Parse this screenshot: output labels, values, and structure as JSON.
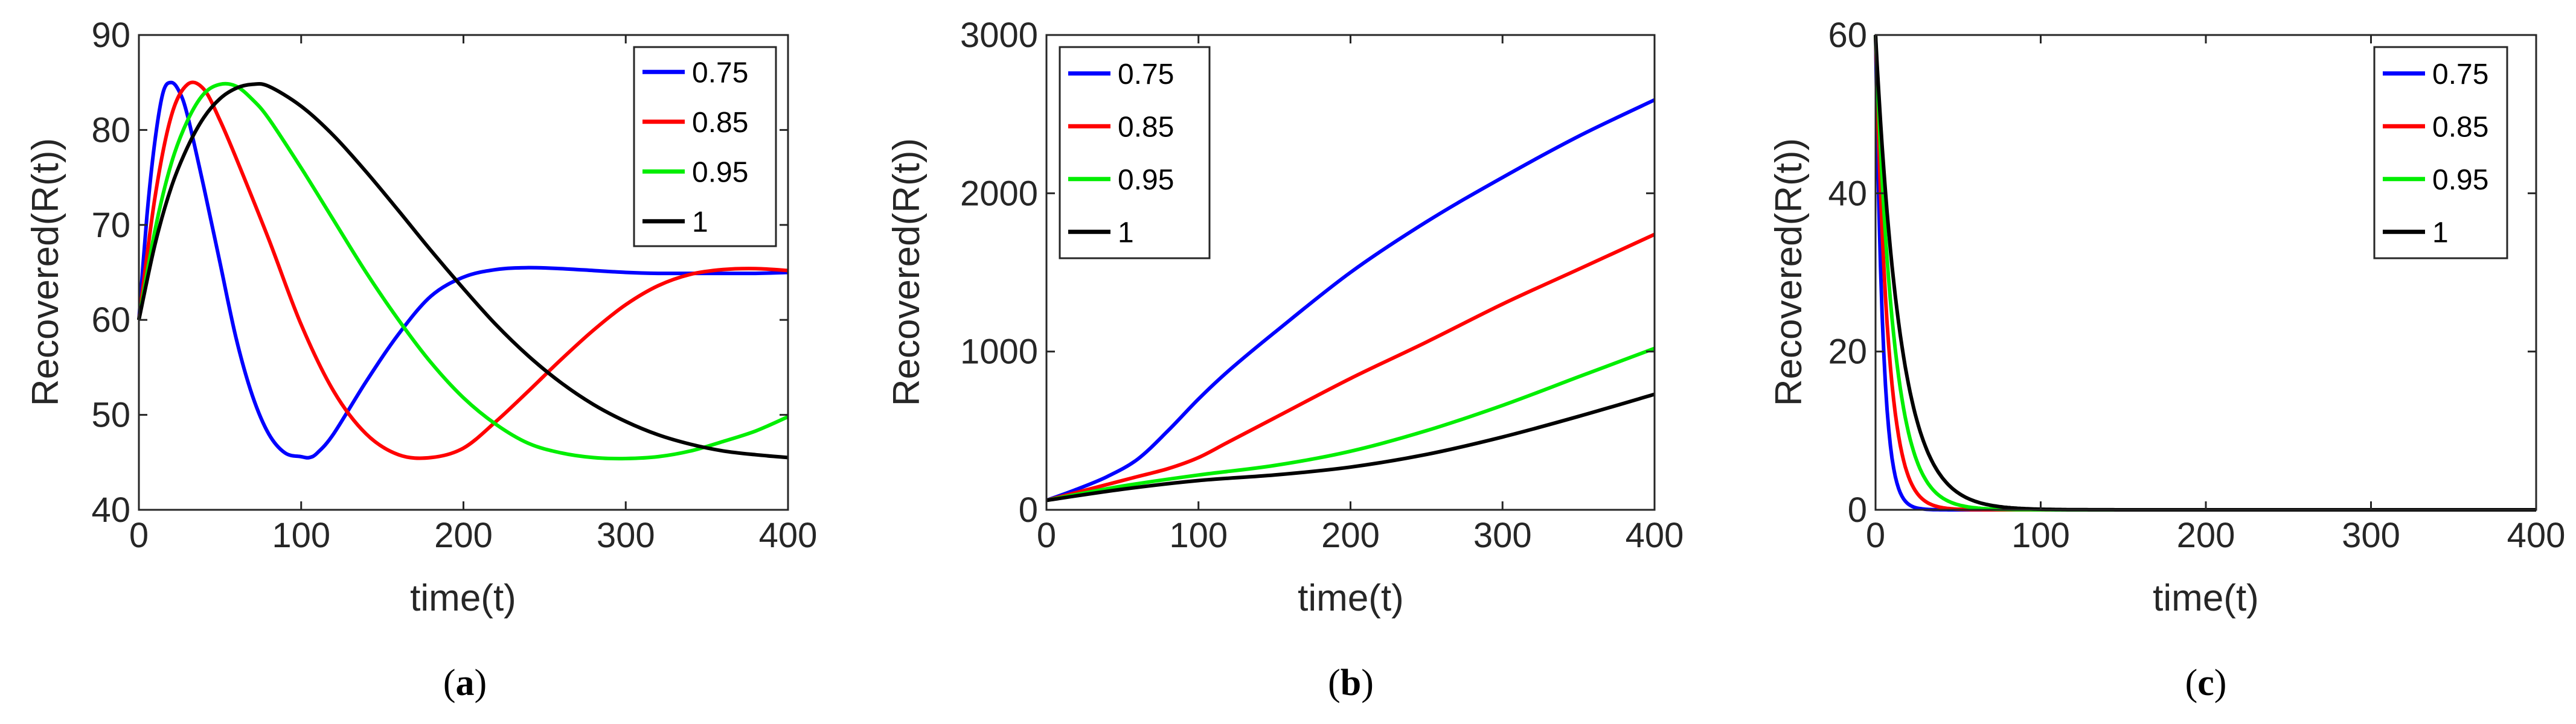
{
  "colors": {
    "s0": "#0000ff",
    "s1": "#ff0000",
    "s2": "#00ee00",
    "s3": "#000000",
    "axis": "#262626"
  },
  "chart_data": [
    {
      "type": "line",
      "caption_open": "(",
      "caption_letter": "a",
      "caption_close": ")",
      "xlabel": "time(t)",
      "ylabel": "Recovered(R(t))",
      "xlim": [
        0,
        400
      ],
      "ylim": [
        40,
        90
      ],
      "xticks": [
        0,
        100,
        200,
        300,
        400
      ],
      "yticks": [
        40,
        50,
        60,
        70,
        80,
        90
      ],
      "legend_position": "top-right",
      "series": [
        {
          "name": "0.75",
          "x": [
            0,
            5,
            10,
            15,
            20,
            25,
            30,
            40,
            50,
            60,
            70,
            80,
            90,
            100,
            105,
            110,
            120,
            140,
            160,
            180,
            200,
            220,
            240,
            260,
            280,
            300,
            320,
            340,
            360,
            380,
            400
          ],
          "y": [
            60,
            71,
            79,
            84,
            85,
            84,
            81.5,
            74,
            66,
            58,
            52,
            48,
            46,
            45.6,
            45.5,
            46,
            48,
            53.5,
            58.5,
            62.5,
            64.5,
            65.3,
            65.5,
            65.4,
            65.2,
            65.0,
            64.9,
            64.9,
            64.9,
            64.9,
            65.0
          ]
        },
        {
          "name": "0.85",
          "x": [
            0,
            10,
            20,
            30,
            40,
            50,
            60,
            80,
            100,
            120,
            140,
            160,
            180,
            200,
            220,
            240,
            260,
            280,
            300,
            320,
            340,
            360,
            380,
            400
          ],
          "y": [
            60,
            73,
            81.5,
            84.8,
            84.3,
            81,
            77,
            68.5,
            59.5,
            52.5,
            48,
            45.8,
            45.5,
            46.5,
            49.3,
            52.5,
            55.8,
            58.9,
            61.6,
            63.6,
            64.8,
            65.3,
            65.4,
            65.2
          ]
        },
        {
          "name": "0.95",
          "x": [
            0,
            10,
            20,
            30,
            40,
            50,
            60,
            70,
            80,
            100,
            120,
            140,
            160,
            180,
            200,
            220,
            240,
            260,
            280,
            300,
            320,
            340,
            360,
            380,
            400
          ],
          "y": [
            60,
            69.5,
            76.5,
            81,
            83.8,
            84.8,
            84.6,
            83.2,
            81.2,
            76,
            70.5,
            65,
            60,
            55.5,
            51.8,
            49,
            47,
            46,
            45.5,
            45.4,
            45.6,
            46.2,
            47.2,
            48.3,
            49.8
          ]
        },
        {
          "name": "1",
          "x": [
            0,
            10,
            20,
            30,
            40,
            50,
            60,
            70,
            80,
            100,
            120,
            140,
            160,
            180,
            200,
            220,
            240,
            260,
            280,
            300,
            320,
            340,
            360,
            380,
            400
          ],
          "y": [
            60,
            68,
            74,
            78.2,
            81.3,
            83.3,
            84.4,
            84.8,
            84.6,
            82.5,
            79.4,
            75.6,
            71.5,
            67.3,
            63.3,
            59.5,
            56.2,
            53.4,
            51.1,
            49.3,
            47.9,
            46.9,
            46.2,
            45.8,
            45.5
          ]
        }
      ]
    },
    {
      "type": "line",
      "caption_open": "(",
      "caption_letter": "b",
      "caption_close": ")",
      "xlabel": "time(t)",
      "ylabel": "Recovered(R(t))",
      "xlim": [
        0,
        400
      ],
      "ylim": [
        0,
        3000
      ],
      "xticks": [
        0,
        100,
        200,
        300,
        400
      ],
      "yticks": [
        0,
        1000,
        2000,
        3000
      ],
      "legend_position": "top-left",
      "series": [
        {
          "name": "0.75",
          "x": [
            0,
            20,
            40,
            60,
            80,
            100,
            120,
            150,
            200,
            250,
            300,
            350,
            400
          ],
          "y": [
            60,
            130,
            210,
            320,
            500,
            700,
            880,
            1120,
            1500,
            1820,
            2100,
            2360,
            2590
          ]
        },
        {
          "name": "0.85",
          "x": [
            0,
            20,
            40,
            60,
            80,
            100,
            120,
            150,
            200,
            250,
            300,
            350,
            400
          ],
          "y": [
            60,
            110,
            160,
            210,
            260,
            330,
            430,
            580,
            830,
            1060,
            1300,
            1520,
            1740
          ]
        },
        {
          "name": "0.95",
          "x": [
            0,
            50,
            100,
            150,
            200,
            250,
            300,
            350,
            400
          ],
          "y": [
            60,
            150,
            220,
            280,
            370,
            500,
            660,
            840,
            1020
          ]
        },
        {
          "name": "1",
          "x": [
            0,
            50,
            100,
            150,
            200,
            250,
            300,
            350,
            400
          ],
          "y": [
            60,
            130,
            185,
            220,
            270,
            350,
            460,
            590,
            730
          ]
        }
      ]
    },
    {
      "type": "line",
      "caption_open": "(",
      "caption_letter": "c",
      "caption_close": ")",
      "xlabel": "time(t)",
      "ylabel": "Recovered(R(t))",
      "xlim": [
        0,
        400
      ],
      "ylim": [
        0,
        60
      ],
      "xticks": [
        0,
        100,
        200,
        300,
        400
      ],
      "yticks": [
        0,
        20,
        40,
        60
      ],
      "legend_position": "top-right",
      "series": [
        {
          "name": "0.75",
          "decay": 4.5,
          "start": 60
        },
        {
          "name": "0.85",
          "decay": 7.5,
          "start": 60
        },
        {
          "name": "0.95",
          "decay": 11,
          "start": 60
        },
        {
          "name": "1",
          "decay": 15,
          "start": 60
        }
      ]
    }
  ]
}
